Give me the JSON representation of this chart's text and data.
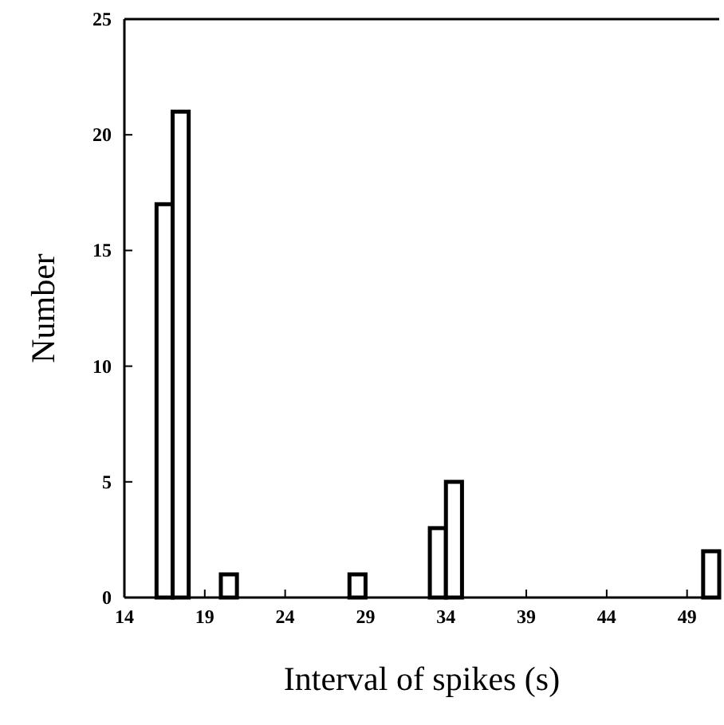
{
  "chart_data": {
    "type": "histogram",
    "xlabel": "Interval of spikes (s)",
    "ylabel": "Number",
    "bins": [
      14,
      15,
      16,
      17,
      18,
      19,
      20,
      21,
      22,
      23,
      24,
      25,
      26,
      27,
      28,
      29,
      30,
      31,
      32,
      33,
      34,
      35,
      36,
      37,
      38,
      39,
      40,
      41,
      42,
      43,
      44,
      45,
      46,
      47,
      48,
      49,
      50,
      51
    ],
    "values": [
      0,
      0,
      17,
      21,
      0,
      0,
      1,
      0,
      0,
      0,
      0,
      0,
      0,
      0,
      1,
      0,
      0,
      0,
      0,
      3,
      5,
      0,
      0,
      0,
      0,
      0,
      0,
      0,
      0,
      0,
      0,
      0,
      0,
      0,
      0,
      0,
      2
    ],
    "color": "#000000",
    "xlim": [
      14,
      51
    ],
    "ylim": [
      0,
      25
    ],
    "xticks": [
      14,
      19,
      24,
      29,
      34,
      39,
      44,
      49
    ],
    "yticks": [
      0,
      5,
      10,
      15,
      20,
      25
    ],
    "grid": false
  }
}
